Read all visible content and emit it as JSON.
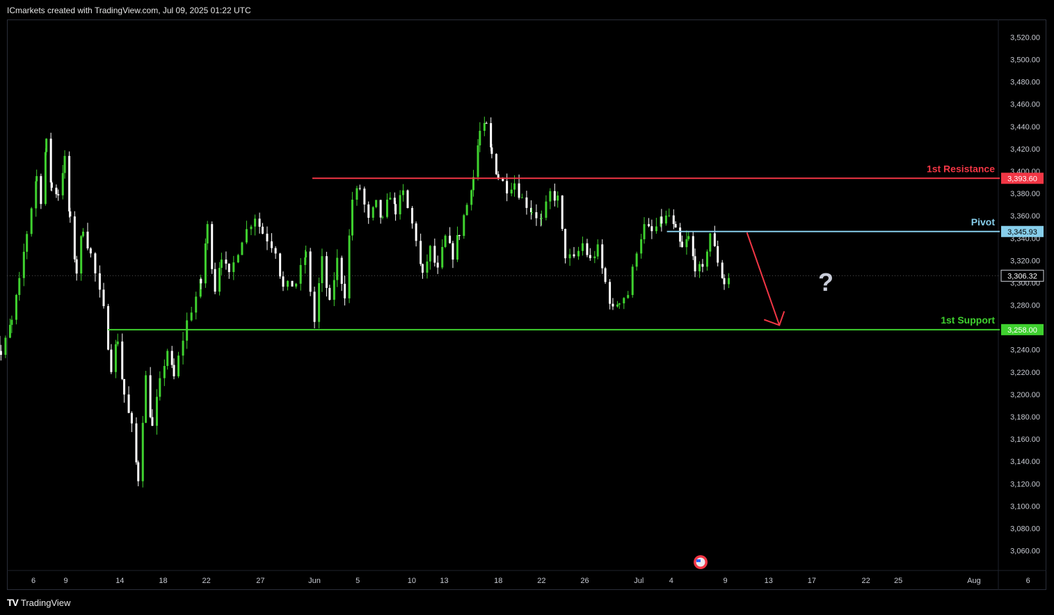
{
  "header": {
    "caption": "ICmarkets created with TradingView.com, Jul 09, 2025 01:22 UTC"
  },
  "footer": {
    "logo": "TV",
    "brand": "TradingView"
  },
  "colors": {
    "up": "#3fd12f",
    "down": "#ffffff",
    "resistance": "#f23645",
    "pivot": "#87ceeb",
    "support": "#3fd12f",
    "arrow": "#f23645",
    "background": "#000000",
    "question": "#c8ccd8"
  },
  "chart_data": {
    "type": "candlestick",
    "y_ticks": [
      "3,520.00",
      "3,500.00",
      "3,480.00",
      "3,460.00",
      "3,440.00",
      "3,420.00",
      "3,400.00",
      "3,380.00",
      "3,360.00",
      "3,340.00",
      "3,320.00",
      "3,300.00",
      "3,280.00",
      "3,240.00",
      "3,220.00",
      "3,200.00",
      "3,180.00",
      "3,160.00",
      "3,140.00",
      "3,120.00",
      "3,100.00",
      "3,080.00",
      "3,060.00"
    ],
    "y_tick_values": [
      3520,
      3500,
      3480,
      3460,
      3440,
      3420,
      3400,
      3380,
      3360,
      3340,
      3320,
      3300,
      3280,
      3240,
      3220,
      3200,
      3180,
      3160,
      3140,
      3120,
      3100,
      3080,
      3060
    ],
    "x_ticks": [
      {
        "label": "6",
        "day": 6
      },
      {
        "label": "9",
        "day": 9
      },
      {
        "label": "14",
        "day": 14
      },
      {
        "label": "18",
        "day": 18
      },
      {
        "label": "22",
        "day": 22
      },
      {
        "label": "27",
        "day": 27
      },
      {
        "label": "Jun",
        "day": 32
      },
      {
        "label": "5",
        "day": 36
      },
      {
        "label": "10",
        "day": 41
      },
      {
        "label": "13",
        "day": 44
      },
      {
        "label": "18",
        "day": 49
      },
      {
        "label": "22",
        "day": 53
      },
      {
        "label": "26",
        "day": 57
      },
      {
        "label": "Jul",
        "day": 62
      },
      {
        "label": "4",
        "day": 65
      },
      {
        "label": "9",
        "day": 70
      },
      {
        "label": "13",
        "day": 74
      },
      {
        "label": "17",
        "day": 78
      },
      {
        "label": "22",
        "day": 83
      },
      {
        "label": "25",
        "day": 86
      },
      {
        "label": "Aug",
        "day": 93
      },
      {
        "label": "6",
        "day": 98
      }
    ],
    "price_path": [
      [
        2,
        3270
      ],
      [
        3,
        3235
      ],
      [
        4,
        3265
      ],
      [
        4.7,
        3300
      ],
      [
        5.4,
        3345
      ],
      [
        6.3,
        3395
      ],
      [
        6.7,
        3375
      ],
      [
        7.2,
        3425
      ],
      [
        7.7,
        3385
      ],
      [
        8.3,
        3380
      ],
      [
        8.9,
        3410
      ],
      [
        9.4,
        3355
      ],
      [
        10,
        3310
      ],
      [
        10.6,
        3350
      ],
      [
        11.3,
        3325
      ],
      [
        12.5,
        3275
      ],
      [
        13.2,
        3225
      ],
      [
        13.8,
        3250
      ],
      [
        14.4,
        3200
      ],
      [
        15.1,
        3170
      ],
      [
        15.7,
        3125
      ],
      [
        16.4,
        3215
      ],
      [
        17,
        3170
      ],
      [
        17.7,
        3210
      ],
      [
        18.4,
        3240
      ],
      [
        19,
        3215
      ],
      [
        20.2,
        3265
      ],
      [
        21.5,
        3300
      ],
      [
        22.1,
        3350
      ],
      [
        22.8,
        3295
      ],
      [
        23.4,
        3325
      ],
      [
        24.1,
        3305
      ],
      [
        25.3,
        3340
      ],
      [
        26.5,
        3360
      ],
      [
        27.2,
        3345
      ],
      [
        28.4,
        3330
      ],
      [
        29.1,
        3295
      ],
      [
        30.3,
        3300
      ],
      [
        31.2,
        3325
      ],
      [
        32,
        3265
      ],
      [
        32.7,
        3320
      ],
      [
        33.4,
        3280
      ],
      [
        34.1,
        3320
      ],
      [
        34.8,
        3290
      ],
      [
        35.5,
        3375
      ],
      [
        36.2,
        3385
      ],
      [
        37,
        3355
      ],
      [
        37.7,
        3370
      ],
      [
        38.3,
        3355
      ],
      [
        39,
        3380
      ],
      [
        39.5,
        3365
      ],
      [
        40.2,
        3380
      ],
      [
        41.4,
        3340
      ],
      [
        42,
        3305
      ],
      [
        42.7,
        3330
      ],
      [
        43.4,
        3310
      ],
      [
        44.1,
        3340
      ],
      [
        44.8,
        3325
      ],
      [
        45.4,
        3345
      ],
      [
        46.1,
        3370
      ],
      [
        46.7,
        3395
      ],
      [
        47.3,
        3435
      ],
      [
        47.9,
        3440
      ],
      [
        48.4,
        3415
      ],
      [
        49,
        3395
      ],
      [
        49.8,
        3385
      ],
      [
        50.5,
        3390
      ],
      [
        51.2,
        3375
      ],
      [
        52.1,
        3365
      ],
      [
        53,
        3355
      ],
      [
        53.8,
        3380
      ],
      [
        54.5,
        3375
      ],
      [
        55.2,
        3325
      ],
      [
        56,
        3320
      ],
      [
        56.8,
        3335
      ],
      [
        57.5,
        3320
      ],
      [
        58.2,
        3330
      ],
      [
        58.9,
        3300
      ],
      [
        59.6,
        3275
      ],
      [
        60.2,
        3285
      ],
      [
        61,
        3290
      ],
      [
        61.8,
        3330
      ],
      [
        62.5,
        3350
      ],
      [
        63.2,
        3345
      ],
      [
        64.1,
        3355
      ],
      [
        64.8,
        3360
      ],
      [
        65.4,
        3345
      ],
      [
        66,
        3330
      ],
      [
        66.6,
        3340
      ],
      [
        67.2,
        3315
      ],
      [
        67.9,
        3310
      ],
      [
        68.6,
        3345
      ],
      [
        69.3,
        3320
      ],
      [
        69.9,
        3300
      ],
      [
        70.5,
        3306
      ]
    ],
    "levels": [
      {
        "name": "1st Resistance",
        "value": 3393.6,
        "label": "3,393.60"
      },
      {
        "name": "Pivot",
        "value": 3345.93,
        "label": "3,345.93"
      },
      {
        "name": "1st Support",
        "value": 3258.0,
        "label": "3,258.00"
      }
    ],
    "last_price": {
      "value": 3306.32,
      "label": "3,306.32"
    },
    "annotations": {
      "question": "?",
      "arrow_from": [
        72,
        3345
      ],
      "arrow_to": [
        75,
        3262
      ]
    }
  }
}
